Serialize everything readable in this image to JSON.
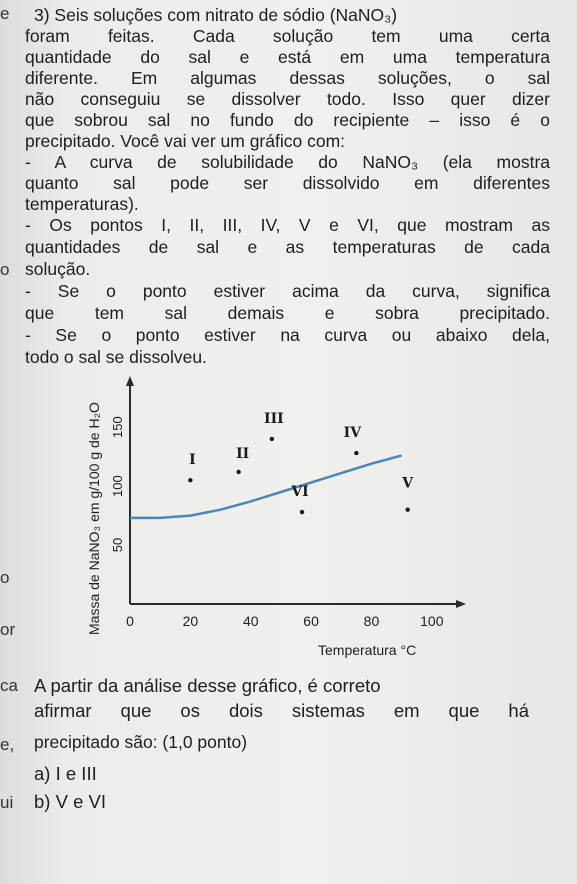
{
  "question": {
    "lines": [
      "3) Seis soluções com nitrato de sódio (NaNO₃)",
      "foram feitas. Cada solução tem uma certa",
      "quantidade do sal e está em uma temperatura",
      "diferente. Em algumas dessas soluções, o sal",
      "não conseguiu se dissolver todo. Isso quer dizer",
      "que sobrou sal no fundo do recipiente – isso é o",
      "precipitado. Você vai ver um gráfico com:",
      "- A curva de solubilidade do NaNO₃ (ela mostra",
      "quanto sal pode ser dissolvido em diferentes",
      "temperaturas).",
      "- Os pontos I, II, III, IV, V e VI, que mostram as",
      "quantidades de sal e as temperaturas de cada",
      "solução.",
      "- Se o ponto estiver acima da curva, significa",
      "que tem sal demais e sobra precipitado.",
      "- Se o ponto estiver na curva ou abaixo dela,",
      "todo o sal se dissolveu."
    ],
    "prompt_lines": [
      "A partir da análise desse gráfico, é correto",
      "afirmar que os dois sistemas em que há",
      "precipitado são: (1,0 ponto)"
    ],
    "options": [
      "a) I e III",
      "b) V e VI"
    ]
  },
  "margin_marks": [
    "e",
    "o",
    "o",
    "or",
    "ca",
    "e,",
    "ui"
  ],
  "chart_data": {
    "type": "scatter",
    "ylabel": "Massa de NaNO₃ em g/100 g de H₂O",
    "xlabel": "Temperatura °C",
    "x_ticks": [
      "0",
      "20",
      "40",
      "60",
      "80",
      "100"
    ],
    "y_ticks": [
      "50",
      "100",
      "150"
    ],
    "xlim": [
      0,
      110
    ],
    "ylim": [
      0,
      190
    ],
    "curve": {
      "x": [
        0,
        10,
        20,
        30,
        40,
        50,
        60,
        70,
        80,
        90
      ],
      "y": [
        73,
        73,
        75,
        80,
        87,
        95,
        103,
        111,
        119,
        126
      ]
    },
    "points": [
      {
        "label": "I",
        "x": 20,
        "y": 105
      },
      {
        "label": "II",
        "x": 36,
        "y": 112
      },
      {
        "label": "III",
        "x": 47,
        "y": 140
      },
      {
        "label": "IV",
        "x": 75,
        "y": 128
      },
      {
        "label": "V",
        "x": 92,
        "y": 80
      },
      {
        "label": "VI",
        "x": 57,
        "y": 78
      }
    ],
    "colors": {
      "curve": "#4a86b8",
      "axis": "#2a2a2a",
      "points": "#1a1a1a"
    }
  }
}
